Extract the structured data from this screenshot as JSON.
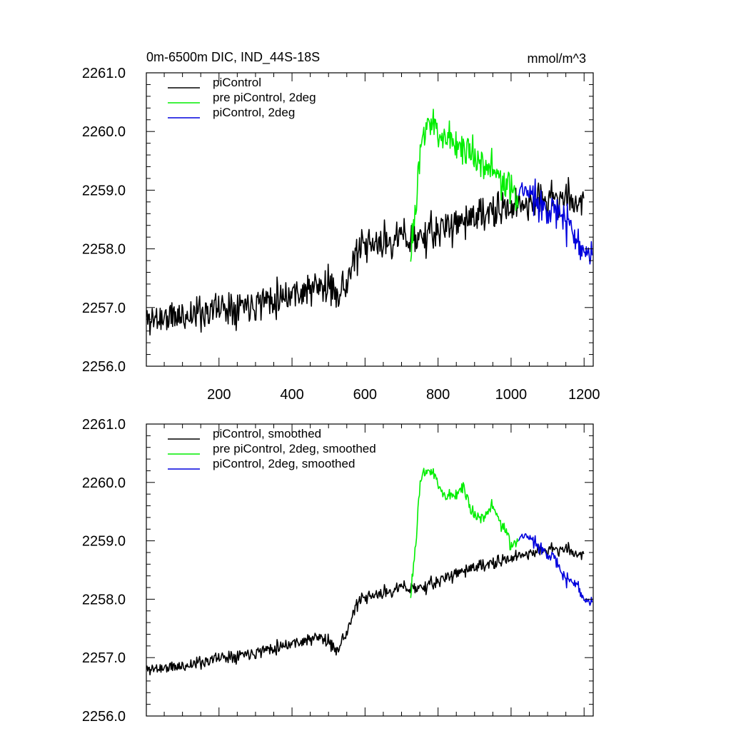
{
  "chart_data": [
    {
      "type": "line",
      "title": "0m-6500m DIC, IND_44S-18S",
      "units": "mmol/m^3",
      "xlabel": "",
      "ylabel": "",
      "xlim": [
        1,
        1225
      ],
      "ylim": [
        2256.0,
        2261.0
      ],
      "x_ticks": [
        200,
        400,
        600,
        800,
        1000,
        1200
      ],
      "x_tick_labels": [
        "200",
        "400",
        "600",
        "800",
        "1000",
        "1200"
      ],
      "y_ticks": [
        2256.0,
        2257.0,
        2258.0,
        2259.0,
        2260.0,
        2261.0
      ],
      "y_tick_labels": [
        "2256.0",
        "2257.0",
        "2258.0",
        "2259.0",
        "2260.0",
        "2261.0"
      ],
      "legend_position": "top-left",
      "series": [
        {
          "name": "piControl",
          "color": "#000000",
          "x_range": [
            1,
            1200
          ],
          "noise": 0.22,
          "seed": 11,
          "anchors": [
            [
              1,
              2256.8
            ],
            [
              100,
              2256.85
            ],
            [
              200,
              2257.0
            ],
            [
              300,
              2257.1
            ],
            [
              400,
              2257.25
            ],
            [
              480,
              2257.35
            ],
            [
              540,
              2257.3
            ],
            [
              560,
              2257.6
            ],
            [
              580,
              2257.95
            ],
            [
              620,
              2258.05
            ],
            [
              700,
              2258.2
            ],
            [
              760,
              2258.2
            ],
            [
              800,
              2258.3
            ],
            [
              850,
              2258.45
            ],
            [
              900,
              2258.55
            ],
            [
              950,
              2258.6
            ],
            [
              1000,
              2258.7
            ],
            [
              1050,
              2258.8
            ],
            [
              1100,
              2258.85
            ],
            [
              1150,
              2258.85
            ],
            [
              1200,
              2258.8
            ]
          ]
        },
        {
          "name": "pre piControl, 2deg",
          "color": "#00ee00",
          "x_range": [
            725,
            1020
          ],
          "noise": 0.22,
          "seed": 23,
          "anchors": [
            [
              725,
              2258.0
            ],
            [
              740,
              2258.7
            ],
            [
              755,
              2259.8
            ],
            [
              770,
              2260.2
            ],
            [
              800,
              2260.0
            ],
            [
              850,
              2259.8
            ],
            [
              900,
              2259.6
            ],
            [
              950,
              2259.35
            ],
            [
              980,
              2259.1
            ],
            [
              1000,
              2258.95
            ],
            [
              1020,
              2258.85
            ]
          ]
        },
        {
          "name": "piControl, 2deg",
          "color": "#0000dd",
          "x_range": [
            1020,
            1222
          ],
          "noise": 0.22,
          "seed": 37,
          "anchors": [
            [
              1020,
              2258.9
            ],
            [
              1040,
              2259.0
            ],
            [
              1080,
              2258.8
            ],
            [
              1110,
              2258.7
            ],
            [
              1140,
              2258.5
            ],
            [
              1160,
              2258.4
            ],
            [
              1180,
              2258.2
            ],
            [
              1200,
              2258.0
            ],
            [
              1222,
              2257.9
            ]
          ]
        }
      ]
    },
    {
      "type": "line",
      "title": "",
      "xlabel": "",
      "ylabel": "",
      "xlim": [
        1,
        1225
      ],
      "ylim": [
        2256.0,
        2261.0
      ],
      "x_ticks": [
        200,
        400,
        600,
        800,
        1000,
        1200
      ],
      "y_ticks": [
        2256.0,
        2257.0,
        2258.0,
        2259.0,
        2260.0,
        2261.0
      ],
      "y_tick_labels": [
        "2256.0",
        "2257.0",
        "2258.0",
        "2259.0",
        "2260.0",
        "2261.0"
      ],
      "legend_position": "top-left",
      "series": [
        {
          "name": "piControl, smoothed",
          "color": "#000000",
          "x_range": [
            1,
            1200
          ],
          "noise": 0.08,
          "seed": 11,
          "anchors": [
            [
              1,
              2256.8
            ],
            [
              100,
              2256.85
            ],
            [
              200,
              2257.0
            ],
            [
              300,
              2257.1
            ],
            [
              400,
              2257.25
            ],
            [
              480,
              2257.35
            ],
            [
              520,
              2257.15
            ],
            [
              540,
              2257.3
            ],
            [
              560,
              2257.6
            ],
            [
              580,
              2257.95
            ],
            [
              620,
              2258.05
            ],
            [
              700,
              2258.2
            ],
            [
              760,
              2258.2
            ],
            [
              800,
              2258.3
            ],
            [
              850,
              2258.45
            ],
            [
              900,
              2258.55
            ],
            [
              950,
              2258.6
            ],
            [
              1000,
              2258.7
            ],
            [
              1050,
              2258.8
            ],
            [
              1100,
              2258.85
            ],
            [
              1150,
              2258.85
            ],
            [
              1200,
              2258.75
            ]
          ]
        },
        {
          "name": "pre piControl, 2deg, smoothed",
          "color": "#00ee00",
          "x_range": [
            725,
            1020
          ],
          "noise": 0.08,
          "seed": 23,
          "anchors": [
            [
              725,
              2258.1
            ],
            [
              740,
              2259.0
            ],
            [
              750,
              2259.9
            ],
            [
              760,
              2260.2
            ],
            [
              780,
              2260.2
            ],
            [
              800,
              2260.0
            ],
            [
              820,
              2259.75
            ],
            [
              850,
              2259.8
            ],
            [
              870,
              2259.95
            ],
            [
              890,
              2259.5
            ],
            [
              920,
              2259.4
            ],
            [
              950,
              2259.6
            ],
            [
              970,
              2259.3
            ],
            [
              985,
              2259.2
            ],
            [
              1000,
              2258.85
            ],
            [
              1020,
              2259.05
            ]
          ]
        },
        {
          "name": "piControl, 2deg, smoothed",
          "color": "#0000dd",
          "x_range": [
            1020,
            1222
          ],
          "noise": 0.08,
          "seed": 37,
          "anchors": [
            [
              1020,
              2259.0
            ],
            [
              1040,
              2259.1
            ],
            [
              1060,
              2259.0
            ],
            [
              1080,
              2258.9
            ],
            [
              1100,
              2258.8
            ],
            [
              1120,
              2258.7
            ],
            [
              1140,
              2258.4
            ],
            [
              1160,
              2258.3
            ],
            [
              1180,
              2258.3
            ],
            [
              1200,
              2258.0
            ],
            [
              1222,
              2257.95
            ]
          ]
        }
      ]
    }
  ]
}
